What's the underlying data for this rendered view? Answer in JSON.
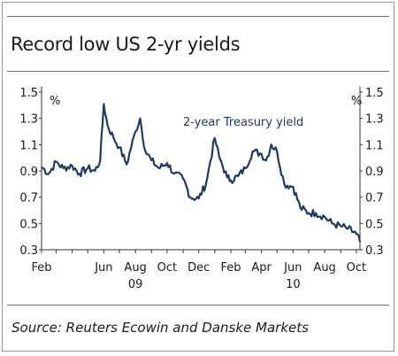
{
  "title": "Record low US 2-yr yields",
  "source": "Source: Reuters Ecowin and Danske Markets",
  "chart_data": {
    "type": "line",
    "y_unit_left": "%",
    "y_unit_right": "%",
    "ylim": [
      0.3,
      1.5
    ],
    "yticks": [
      "0.3",
      "0.5",
      "0.7",
      "0.9",
      "1.1",
      "1.3",
      "1.5"
    ],
    "x_month_labels": [
      "Feb",
      "Jun",
      "Aug",
      "Oct",
      "Dec",
      "Feb",
      "Apr",
      "Jun",
      "Aug",
      "Oct"
    ],
    "x_year_labels": [
      "09",
      "10"
    ],
    "grid": false,
    "series": [
      {
        "name": "2-year Treasury yield",
        "color": "#1f3a63",
        "x": [
          "2009-02-01",
          "2009-02-15",
          "2009-03-01",
          "2009-03-15",
          "2009-04-01",
          "2009-04-15",
          "2009-05-01",
          "2009-05-15",
          "2009-05-25",
          "2009-06-01",
          "2009-06-08",
          "2009-06-20",
          "2009-07-01",
          "2009-07-15",
          "2009-08-01",
          "2009-08-10",
          "2009-08-20",
          "2009-09-01",
          "2009-09-15",
          "2009-10-01",
          "2009-10-15",
          "2009-11-01",
          "2009-11-15",
          "2009-12-01",
          "2009-12-15",
          "2010-01-01",
          "2010-01-10",
          "2010-01-25",
          "2010-02-01",
          "2010-02-15",
          "2010-03-01",
          "2010-03-15",
          "2010-04-01",
          "2010-04-10",
          "2010-04-20",
          "2010-05-01",
          "2010-05-15",
          "2010-06-01",
          "2010-06-15",
          "2010-07-01",
          "2010-07-15",
          "2010-08-01",
          "2010-08-15",
          "2010-09-01",
          "2010-09-15",
          "2010-10-01",
          "2010-10-08"
        ],
        "values": [
          0.93,
          0.88,
          0.97,
          0.92,
          0.94,
          0.88,
          0.92,
          0.9,
          0.98,
          1.41,
          1.25,
          1.15,
          1.08,
          0.95,
          1.2,
          1.3,
          1.05,
          0.98,
          0.92,
          0.96,
          0.88,
          0.84,
          0.7,
          0.69,
          0.8,
          1.15,
          1.0,
          0.85,
          0.83,
          0.86,
          0.92,
          1.05,
          1.03,
          0.98,
          1.1,
          1.05,
          0.8,
          0.78,
          0.62,
          0.58,
          0.58,
          0.55,
          0.5,
          0.48,
          0.46,
          0.42,
          0.36
        ]
      }
    ]
  }
}
